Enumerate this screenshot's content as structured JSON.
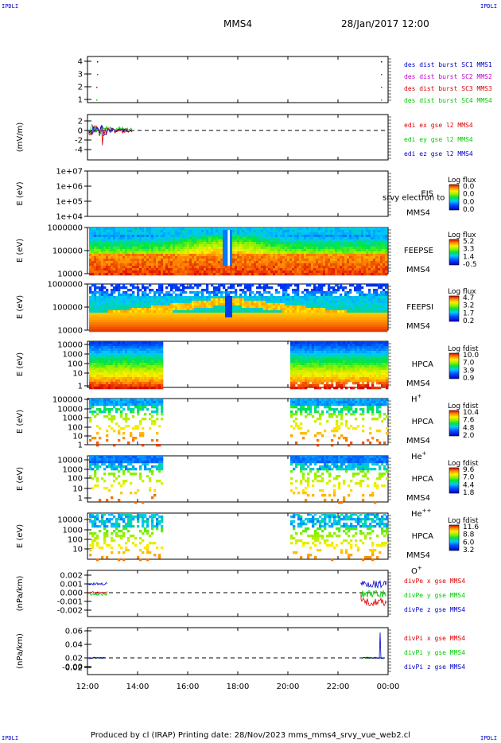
{
  "corner_label": "IPDLI",
  "header": {
    "title": "MMS4",
    "date": "28/Jan/2017 12:00"
  },
  "footer": {
    "text": "Produced by cl (IRAP)   Printing date: 28/Nov/2023   mms_mms4_srvy_vue_web2.cl"
  },
  "colors": {
    "red": "#dd0000",
    "green": "#00cc00",
    "blue": "#0000cc",
    "magenta": "#cc00cc"
  },
  "chart_data": {
    "type": "line",
    "x_ticks": [
      "12:00",
      "14:00",
      "16:00",
      "18:00",
      "20:00",
      "22:00",
      "00:00"
    ],
    "panels": [
      {
        "id": "burst",
        "ylabel": "",
        "yticks": [
          "4",
          "3",
          "2",
          "1"
        ],
        "legend": [
          {
            "text": "des dist burst SC1 MMS1",
            "color": "#0000cc"
          },
          {
            "text": "des dist burst SC2 MMS2",
            "color": "#cc00cc"
          },
          {
            "text": "des dist burst SC3 MMS3",
            "color": "#dd0000"
          },
          {
            "text": "des dist burst SC4 MMS4",
            "color": "#00cc00"
          }
        ]
      },
      {
        "id": "edi",
        "ylabel": "(mV/m)",
        "yticks": [
          "2",
          "0",
          "-2",
          "-4"
        ],
        "legend": [
          {
            "text": "edi ex gse l2 MMS4",
            "color": "#dd0000"
          },
          {
            "text": "edi ey gse l2 MMS4",
            "color": "#00cc00"
          },
          {
            "text": "edi ez gse l2 MMS4",
            "color": "#0000cc"
          }
        ]
      },
      {
        "id": "eis",
        "ylabel": "E (eV)",
        "yticks": [
          "1e+07",
          "1e+06",
          "1e+05",
          "1e+04"
        ],
        "inst": [
          "EIS",
          "MMS4"
        ],
        "overlay": "srvy electron to",
        "cb": {
          "title": "Log flux",
          "ticks": [
            "0.0",
            "0.0",
            "0.0",
            "0.0"
          ]
        }
      },
      {
        "id": "feepse",
        "ylabel": "E (eV)",
        "yticks": [
          "1000000",
          "100000",
          "10000"
        ],
        "inst": [
          "FEEPSE",
          "MMS4"
        ],
        "cb": {
          "title": "Log flux",
          "ticks": [
            "5.2",
            "3.3",
            "1.4",
            "-0.5"
          ]
        }
      },
      {
        "id": "feepsi",
        "ylabel": "E (eV)",
        "yticks": [
          "1000000",
          "100000",
          "10000"
        ],
        "inst": [
          "FEEPSI",
          "MMS4"
        ],
        "cb": {
          "title": "Log flux",
          "ticks": [
            "4.7",
            "3.2",
            "1.7",
            "0.2"
          ]
        }
      },
      {
        "id": "hpca_h",
        "ylabel": "E (eV)",
        "yticks": [
          "10000",
          "1000",
          "100",
          "10",
          "1"
        ],
        "inst": [
          "HPCA",
          "MMS4"
        ],
        "species": "H",
        "species_sup": "+",
        "cb": {
          "title": "Log fdist",
          "ticks": [
            "10.0",
            "7.0",
            "3.9",
            "0.9"
          ]
        }
      },
      {
        "id": "hpca_he",
        "ylabel": "E (eV)",
        "yticks": [
          "100000",
          "10000",
          "1000",
          "100",
          "10",
          "1"
        ],
        "inst": [
          "HPCA",
          "MMS4"
        ],
        "species": "He",
        "species_sup": "+",
        "cb": {
          "title": "Log fdist",
          "ticks": [
            "10.4",
            "7.6",
            "4.8",
            "2.0"
          ]
        }
      },
      {
        "id": "hpca_hepp",
        "ylabel": "E (eV)",
        "yticks": [
          "10000",
          "1000",
          "100",
          "10",
          "1"
        ],
        "inst": [
          "HPCA",
          "MMS4"
        ],
        "species": "He",
        "species_sup": "++",
        "cb": {
          "title": "Log fdist",
          "ticks": [
            "9.6",
            "7.0",
            "4.4",
            "1.8"
          ]
        }
      },
      {
        "id": "hpca_o",
        "ylabel": "E (eV)",
        "yticks": [
          "10000",
          "1000",
          "100",
          "10"
        ],
        "inst": [
          "HPCA",
          "MMS4"
        ],
        "species": "O",
        "species_sup": "+",
        "cb": {
          "title": "Log fdist",
          "ticks": [
            "11.6",
            "8.8",
            "6.0",
            "3.2"
          ]
        }
      },
      {
        "id": "divpe",
        "ylabel": "(nPa/km)",
        "yticks": [
          "0.002",
          "0.001",
          "0.000",
          "-0.001",
          "-0.002"
        ],
        "legend": [
          {
            "text": "divPe x gse MMS4",
            "color": "#dd0000"
          },
          {
            "text": "divPe y gse MMS4",
            "color": "#00cc00"
          },
          {
            "text": "divPe z gse MMS4",
            "color": "#0000cc"
          }
        ]
      },
      {
        "id": "divpi",
        "ylabel": "(nPa/km)",
        "yticks": [
          "0.06",
          "0.04",
          "0.02",
          "0.00",
          "-0.02"
        ],
        "legend": [
          {
            "text": "divPi x gse MMS4",
            "color": "#dd0000"
          },
          {
            "text": "divPi y gse MMS4",
            "color": "#00cc00"
          },
          {
            "text": "divPi z gse MMS4",
            "color": "#0000cc"
          }
        ]
      }
    ]
  }
}
